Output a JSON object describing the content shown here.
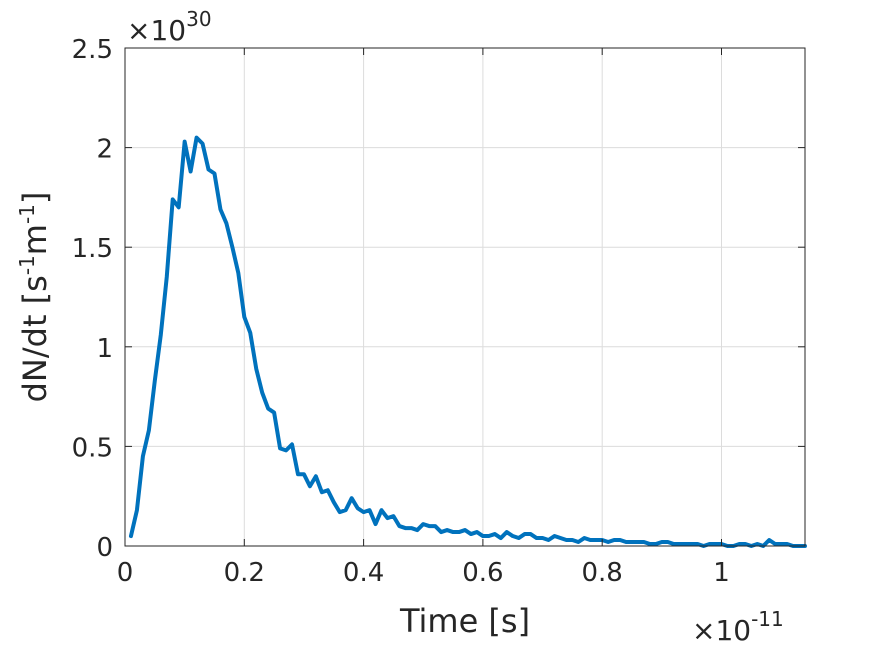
{
  "chart_data": {
    "type": "line",
    "xlabel": "Time [s]",
    "ylabel_base": "dN/dt [s",
    "ylabel_exp1": "-1",
    "ylabel_mid": "m",
    "ylabel_exp2": "-1",
    "ylabel_end": "]",
    "x_multiplier_base": "×10",
    "x_multiplier_exp": "-11",
    "y_multiplier_base": "×10",
    "y_multiplier_exp": "30",
    "xlim": [
      0,
      1.14
    ],
    "ylim": [
      0,
      2.5
    ],
    "xticks": [
      0,
      0.2,
      0.4,
      0.6,
      0.8,
      1
    ],
    "xtick_labels": [
      "0",
      "0.2",
      "0.4",
      "0.6",
      "0.8",
      "1"
    ],
    "yticks": [
      0,
      0.5,
      1,
      1.5,
      2,
      2.5
    ],
    "ytick_labels": [
      "0",
      "0.5",
      "1",
      "1.5",
      "2",
      "2.5"
    ],
    "grid": true,
    "line_color": "#0072bd",
    "series": [
      {
        "x": [
          0.01,
          0.02,
          0.03,
          0.04,
          0.05,
          0.06,
          0.07,
          0.08,
          0.09,
          0.1,
          0.11,
          0.12,
          0.13,
          0.14,
          0.15,
          0.16,
          0.17,
          0.18,
          0.19,
          0.2,
          0.21,
          0.22,
          0.23,
          0.24,
          0.25,
          0.26,
          0.27,
          0.28,
          0.29,
          0.3,
          0.31,
          0.32,
          0.33,
          0.34,
          0.35,
          0.36,
          0.37,
          0.38,
          0.39,
          0.4,
          0.41,
          0.42,
          0.43,
          0.44,
          0.45,
          0.46,
          0.47,
          0.48,
          0.49,
          0.5,
          0.51,
          0.52,
          0.53,
          0.54,
          0.55,
          0.56,
          0.57,
          0.58,
          0.59,
          0.6,
          0.61,
          0.62,
          0.63,
          0.64,
          0.65,
          0.66,
          0.67,
          0.68,
          0.69,
          0.7,
          0.71,
          0.72,
          0.73,
          0.74,
          0.75,
          0.76,
          0.77,
          0.78,
          0.79,
          0.8,
          0.81,
          0.82,
          0.83,
          0.84,
          0.85,
          0.86,
          0.87,
          0.88,
          0.89,
          0.9,
          0.91,
          0.92,
          0.93,
          0.94,
          0.95,
          0.96,
          0.97,
          0.98,
          0.99,
          1.0,
          1.01,
          1.02,
          1.03,
          1.04,
          1.05,
          1.06,
          1.07,
          1.08,
          1.09,
          1.1,
          1.11,
          1.12,
          1.13,
          1.14
        ],
        "values": [
          0.05,
          0.18,
          0.45,
          0.58,
          0.83,
          1.06,
          1.35,
          1.74,
          1.7,
          2.03,
          1.88,
          2.05,
          2.02,
          1.89,
          1.87,
          1.69,
          1.62,
          1.5,
          1.37,
          1.15,
          1.07,
          0.89,
          0.77,
          0.69,
          0.67,
          0.49,
          0.48,
          0.51,
          0.36,
          0.36,
          0.3,
          0.35,
          0.27,
          0.28,
          0.22,
          0.17,
          0.18,
          0.24,
          0.19,
          0.17,
          0.18,
          0.11,
          0.18,
          0.14,
          0.15,
          0.1,
          0.09,
          0.09,
          0.08,
          0.11,
          0.1,
          0.1,
          0.07,
          0.08,
          0.07,
          0.07,
          0.08,
          0.06,
          0.07,
          0.05,
          0.05,
          0.06,
          0.04,
          0.07,
          0.05,
          0.04,
          0.06,
          0.06,
          0.04,
          0.04,
          0.03,
          0.05,
          0.04,
          0.03,
          0.03,
          0.02,
          0.04,
          0.03,
          0.03,
          0.03,
          0.02,
          0.03,
          0.03,
          0.02,
          0.02,
          0.02,
          0.02,
          0.01,
          0.01,
          0.02,
          0.02,
          0.01,
          0.01,
          0.01,
          0.01,
          0.01,
          0.0,
          0.01,
          0.01,
          0.01,
          0.0,
          0.0,
          0.01,
          0.01,
          0.0,
          0.01,
          0.0,
          0.03,
          0.01,
          0.01,
          0.01,
          0.0,
          0.0,
          0.0
        ]
      }
    ]
  }
}
